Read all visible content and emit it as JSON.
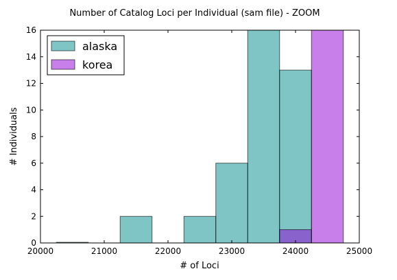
{
  "chart_data": {
    "type": "bar",
    "title": "Number of Catalog Loci per Individual (sam file) - ZOOM",
    "xlabel": "# of Loci",
    "ylabel": "# Individuals",
    "xlim": [
      20000,
      25000
    ],
    "ylim": [
      0,
      16
    ],
    "x_ticks": [
      "20000",
      "21000",
      "22000",
      "23000",
      "24000",
      "25000"
    ],
    "y_ticks": [
      "0",
      "2",
      "4",
      "6",
      "8",
      "10",
      "12",
      "14",
      "16"
    ],
    "legend_position": "top-left",
    "bin_edges": [
      20250,
      20750,
      21250,
      21750,
      22250,
      22750,
      23250,
      23750,
      24250,
      24750
    ],
    "series": [
      {
        "name": "alaska",
        "color": "#008b8b",
        "opacity": 0.5,
        "values": [
          0.05,
          0,
          2,
          0,
          2,
          6,
          16,
          13,
          0
        ]
      },
      {
        "name": "korea",
        "color": "#9400d3",
        "opacity": 0.5,
        "values": [
          0,
          0,
          0,
          0,
          0,
          0,
          0,
          1,
          16
        ]
      }
    ]
  }
}
